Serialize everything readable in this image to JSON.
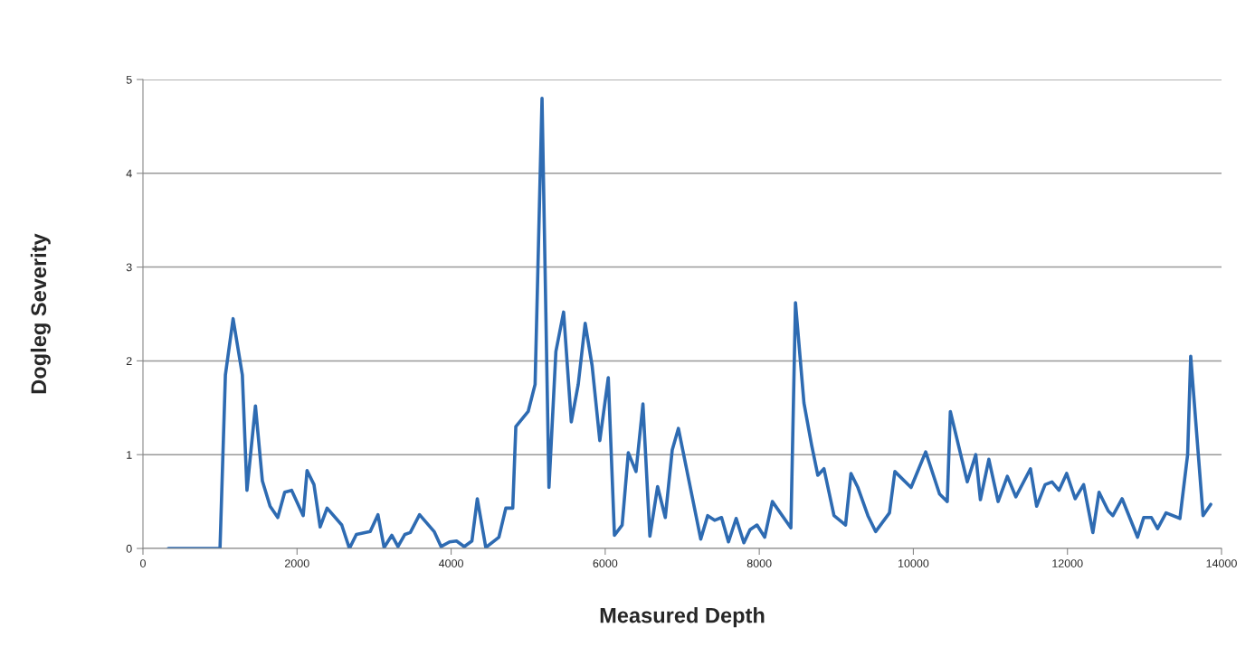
{
  "chart_data": {
    "type": "line",
    "xlabel": "Measured Depth",
    "ylabel": "Dogleg Severity",
    "x": [
      330,
      1000,
      1070,
      1170,
      1290,
      1350,
      1460,
      1550,
      1650,
      1750,
      1840,
      1930,
      2080,
      2130,
      2220,
      2300,
      2390,
      2580,
      2680,
      2770,
      2950,
      3050,
      3130,
      3230,
      3310,
      3400,
      3470,
      3590,
      3780,
      3870,
      3980,
      4070,
      4170,
      4270,
      4340,
      4450,
      4620,
      4710,
      4800,
      4840,
      5000,
      5090,
      5180,
      5270,
      5360,
      5460,
      5560,
      5650,
      5740,
      5830,
      5930,
      6040,
      6120,
      6220,
      6300,
      6400,
      6490,
      6580,
      6680,
      6780,
      6870,
      6950,
      7240,
      7330,
      7420,
      7510,
      7600,
      7700,
      7800,
      7880,
      7970,
      8070,
      8170,
      8410,
      8470,
      8580,
      8680,
      8760,
      8840,
      8970,
      9120,
      9190,
      9280,
      9410,
      9510,
      9690,
      9760,
      9970,
      10160,
      10340,
      10440,
      10480,
      10700,
      10810,
      10870,
      10980,
      11100,
      11220,
      11330,
      11520,
      11600,
      11710,
      11800,
      11890,
      11990,
      12100,
      12210,
      12330,
      12410,
      12530,
      12590,
      12710,
      12910,
      12990,
      13090,
      13170,
      13280,
      13460,
      13560,
      13600,
      13760,
      13860
    ],
    "series": [
      {
        "color": "#2e6bb2",
        "values": [
          0,
          0,
          1.85,
          2.45,
          1.85,
          0.62,
          1.52,
          0.72,
          0.45,
          0.33,
          0.6,
          0.62,
          0.35,
          0.83,
          0.68,
          0.23,
          0.43,
          0.25,
          0,
          0.15,
          0.18,
          0.36,
          0.01,
          0.14,
          0.02,
          0.15,
          0.17,
          0.36,
          0.18,
          0.02,
          0.07,
          0.08,
          0.02,
          0.08,
          0.53,
          0.01,
          0.12,
          0.43,
          0.43,
          1.3,
          1.46,
          1.75,
          4.8,
          0.65,
          2.1,
          2.52,
          1.35,
          1.75,
          2.4,
          1.95,
          1.15,
          1.82,
          0.14,
          0.25,
          1.02,
          0.82,
          1.54,
          0.13,
          0.66,
          0.33,
          1.05,
          1.28,
          0.1,
          0.35,
          0.3,
          0.33,
          0.07,
          0.32,
          0.06,
          0.2,
          0.25,
          0.12,
          0.5,
          0.22,
          2.62,
          1.55,
          1.1,
          0.78,
          0.85,
          0.35,
          0.25,
          0.8,
          0.65,
          0.35,
          0.18,
          0.38,
          0.82,
          0.65,
          1.03,
          0.58,
          0.5,
          1.46,
          0.71,
          1.0,
          0.52,
          0.95,
          0.5,
          0.77,
          0.55,
          0.85,
          0.45,
          0.68,
          0.71,
          0.62,
          0.8,
          0.53,
          0.68,
          0.17,
          0.6,
          0.4,
          0.35,
          0.53,
          0.12,
          0.33,
          0.33,
          0.21,
          0.38,
          0.32,
          1.0,
          2.05,
          0.35,
          0.47
        ]
      }
    ],
    "xlim": [
      0,
      14000
    ],
    "xticks": [
      0,
      2000,
      4000,
      6000,
      8000,
      10000,
      12000,
      14000
    ],
    "ylim": [
      0,
      5
    ],
    "yticks": [
      0,
      1,
      2,
      3,
      4,
      5
    ],
    "grid": "y",
    "marker": "none",
    "line_style": "solid"
  }
}
